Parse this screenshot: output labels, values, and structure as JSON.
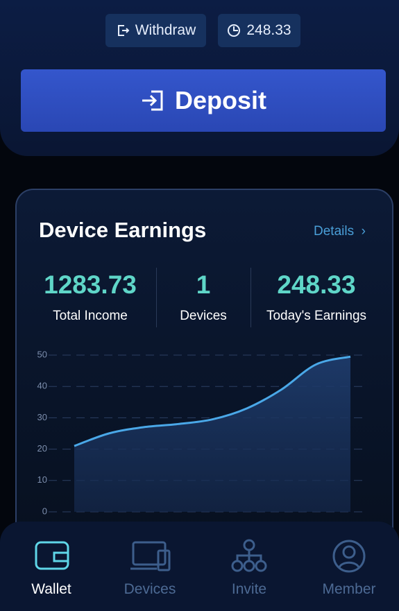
{
  "top": {
    "withdraw": "Withdraw",
    "balance": 248.33,
    "deposit": "Deposit"
  },
  "card": {
    "title": "Device Earnings",
    "details": "Details",
    "stats": [
      {
        "value": 1283.73,
        "label": "Total Income"
      },
      {
        "value": 1,
        "label": "Devices"
      },
      {
        "value": 248.33,
        "label": "Today's Earnings"
      }
    ]
  },
  "chart_data": {
    "type": "line",
    "categories": [
      null,
      null,
      null,
      null,
      null,
      null,
      null,
      null,
      null
    ],
    "values": [
      21,
      25,
      27,
      28,
      29.5,
      33,
      39,
      47,
      49.5
    ],
    "color": "#4aa8e8",
    "ylim": [
      0,
      50
    ],
    "yticks": [
      0,
      10,
      20,
      30,
      40,
      50
    ],
    "grid": true
  },
  "nav": [
    "Wallet",
    "Devices",
    "Invite",
    "Member"
  ]
}
